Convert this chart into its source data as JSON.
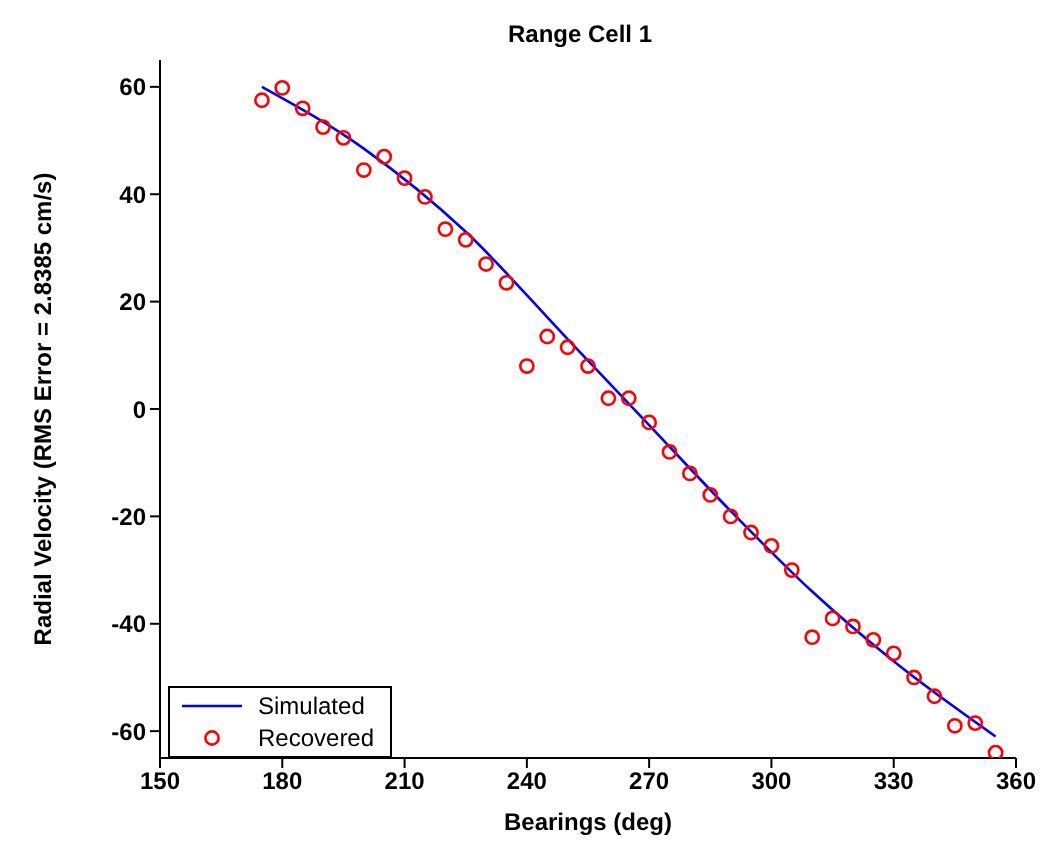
{
  "chart_data": {
    "type": "scatter",
    "title": "Range Cell 1",
    "xlabel": "Bearings (deg)",
    "ylabel": "Radial Velocity  (RMS Error = 2.8385 cm/s)",
    "xlim": [
      150,
      360
    ],
    "xticks": [
      150,
      180,
      210,
      240,
      270,
      300,
      330,
      360
    ],
    "ylim": [
      -65,
      65
    ],
    "yticks": [
      -60,
      -40,
      -20,
      0,
      20,
      40,
      60
    ],
    "grid": false,
    "legend": "bottom left",
    "series": [
      {
        "name": "Simulated",
        "type": "line",
        "color": "#0000ff",
        "marker": "none",
        "line_style": "solid",
        "x": [
          175,
          200,
          225,
          250,
          270,
          290,
          310,
          330,
          355
        ],
        "values": [
          60,
          48.5,
          33,
          13,
          -3,
          -19,
          -34,
          -47,
          -61
        ]
      },
      {
        "name": "Recovered",
        "type": "scatter",
        "color": "#ff0000",
        "marker": "circle",
        "x": [
          175,
          180,
          185,
          190,
          195,
          200,
          205,
          210,
          215,
          220,
          225,
          230,
          235,
          240,
          245,
          250,
          255,
          260,
          265,
          270,
          275,
          280,
          285,
          290,
          295,
          300,
          305,
          310,
          315,
          320,
          325,
          330,
          335,
          340,
          345,
          350,
          355
        ],
        "values": [
          57.5,
          59.8,
          56,
          52.5,
          50.5,
          44.5,
          47,
          43,
          39.5,
          33.5,
          31.5,
          27,
          23.5,
          8,
          13.5,
          11.5,
          8,
          2,
          2,
          -2.5,
          -8,
          -12,
          -16,
          -20,
          -23,
          -25.5,
          -30,
          -42.5,
          -39,
          -40.5,
          -43,
          -45.5,
          -50,
          -53.5,
          -59,
          -58.5,
          -64
        ]
      }
    ]
  }
}
